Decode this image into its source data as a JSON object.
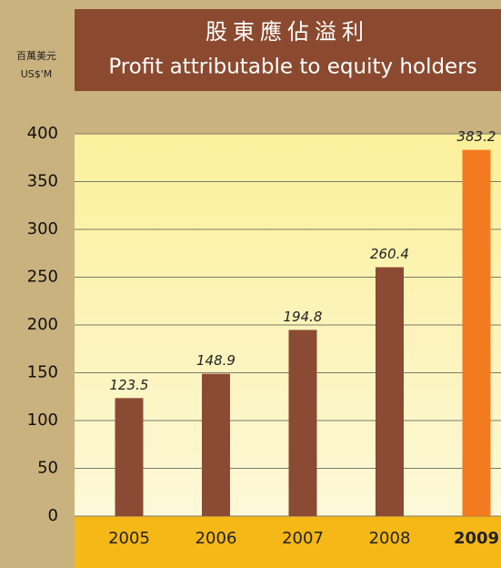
{
  "chart_data": {
    "type": "bar",
    "title": "股東應佔溢利",
    "subtitle": "Profit attributable to equity holders",
    "y_label": [
      "百萬美元",
      "US$'M"
    ],
    "categories": [
      "2005",
      "2006",
      "2007",
      "2008",
      "2009"
    ],
    "values": [
      123.5,
      148.9,
      194.8,
      260.4,
      383.2
    ],
    "colors": [
      "#8b4a33",
      "#8b4a33",
      "#8b4a33",
      "#8b4a33",
      "#f47a20"
    ],
    "ylim": [
      0,
      400
    ],
    "yticks": [
      0,
      50,
      100,
      150,
      200,
      250,
      300,
      350,
      400
    ],
    "grid": true
  }
}
